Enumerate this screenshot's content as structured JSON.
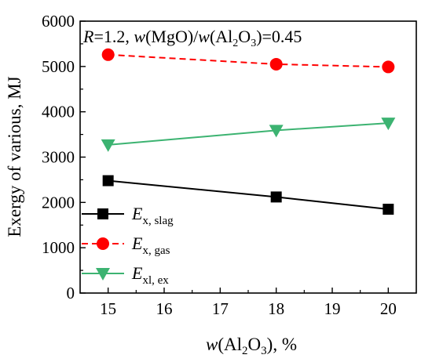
{
  "chart_data": {
    "type": "line",
    "annotation": {
      "r_label": "R",
      "r_value": "=1.2, ",
      "w1": "w",
      "mgo": "(MgO)/",
      "w2": "w",
      "al": "(Al",
      "sub2": "2",
      "o": "O",
      "sub3": "3",
      "tail": ")=0.45"
    },
    "xlabel": {
      "w": "w",
      "al": "(Al",
      "sub2": "2",
      "o": "O",
      "sub3": "3",
      "tail": "), %"
    },
    "ylabel": "Exergy of various, MJ",
    "xlim": [
      14.5,
      20.5
    ],
    "ylim": [
      0,
      6000
    ],
    "x_ticks": [
      15,
      16,
      17,
      18,
      19,
      20
    ],
    "y_ticks": [
      0,
      1000,
      2000,
      3000,
      4000,
      5000,
      6000
    ],
    "grid": false,
    "legend_position": "lower-left",
    "series": [
      {
        "main": "E",
        "sub": "x, slag",
        "color": "#000000",
        "marker": "square",
        "line_style": "solid",
        "x": [
          15,
          18,
          20
        ],
        "values": [
          2480,
          2120,
          1850
        ]
      },
      {
        "main": "E",
        "sub": "x, gas",
        "color": "#ff0000",
        "marker": "circle",
        "line_style": "dashed",
        "x": [
          15,
          18,
          20
        ],
        "values": [
          5260,
          5050,
          4990
        ]
      },
      {
        "main": "E",
        "sub": "xl, ex",
        "color": "#3cb371",
        "marker": "triangle-down",
        "line_style": "solid",
        "x": [
          15,
          18,
          20
        ],
        "values": [
          3270,
          3590,
          3750
        ]
      }
    ]
  }
}
